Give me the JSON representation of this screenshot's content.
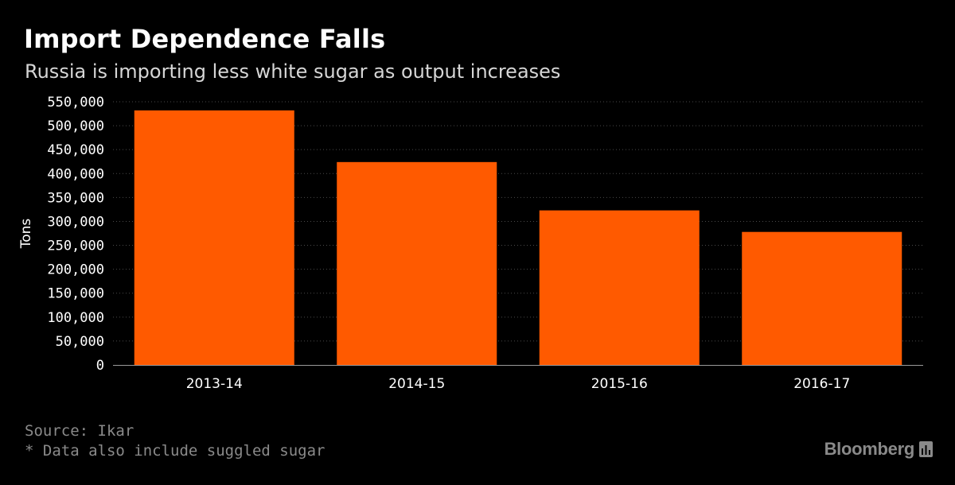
{
  "header": {
    "title": "Import Dependence Falls",
    "subtitle": "Russia is importing less white sugar as output increases"
  },
  "footer": {
    "source": "Source: Ikar",
    "footnote": "* Data also include suggled sugar",
    "brand": "Bloomberg"
  },
  "colors": {
    "background": "#000000",
    "bar": "#ff5a00",
    "grid": "#4a4a4a"
  },
  "chart_data": {
    "type": "bar",
    "title": "Import Dependence Falls",
    "subtitle": "Russia is importing less white sugar as output increases",
    "xlabel": "",
    "ylabel": "Tons",
    "categories": [
      "2013-14",
      "2014-15",
      "2015-16",
      "2016-17"
    ],
    "values": [
      532000,
      424000,
      323000,
      278000
    ],
    "ylim": [
      0,
      550000
    ],
    "yticks": [
      0,
      50000,
      100000,
      150000,
      200000,
      250000,
      300000,
      350000,
      400000,
      450000,
      500000,
      550000
    ],
    "ytick_labels": [
      "0",
      "50,000",
      "100,000",
      "150,000",
      "200,000",
      "250,000",
      "300,000",
      "350,000",
      "400,000",
      "450,000",
      "500,000",
      "550,000"
    ],
    "grid": true,
    "legend": "none"
  }
}
